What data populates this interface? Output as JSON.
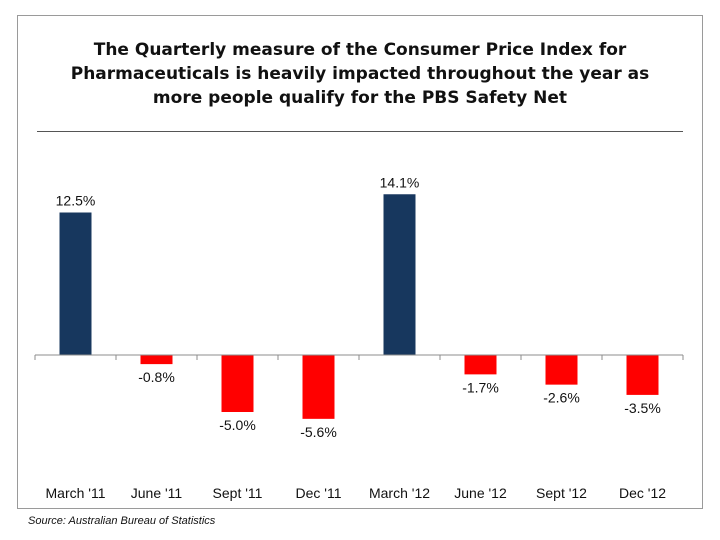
{
  "title_lines": [
    "The Quarterly measure of the Consumer Price Index for",
    "Pharmaceuticals is heavily impacted throughout the year as",
    "more people qualify for the PBS Safety Net"
  ],
  "source": "Source: Australian Bureau of Statistics",
  "colors": {
    "positive": "#17375e",
    "negative": "#ff0000"
  },
  "chart_data": {
    "type": "bar",
    "title": "The Quarterly measure of the Consumer Price Index for Pharmaceuticals is heavily impacted throughout the year as more people qualify for the PBS Safety Net",
    "categories": [
      "March '11",
      "June '11",
      "Sept '11",
      "Dec '11",
      "March '12",
      "June '12",
      "Sept '12",
      "Dec '12"
    ],
    "values": [
      12.5,
      -0.8,
      -5.0,
      -5.6,
      14.1,
      -1.7,
      -2.6,
      -3.5
    ],
    "data_labels": [
      "12.5%",
      "-0.8%",
      "-5.0%",
      "-5.6%",
      "14.1%",
      "-1.7%",
      "-2.6%",
      "-3.5%"
    ],
    "xlabel": "",
    "ylabel": "",
    "ylim": [
      -8,
      16
    ],
    "grid": false,
    "legend": "none"
  }
}
